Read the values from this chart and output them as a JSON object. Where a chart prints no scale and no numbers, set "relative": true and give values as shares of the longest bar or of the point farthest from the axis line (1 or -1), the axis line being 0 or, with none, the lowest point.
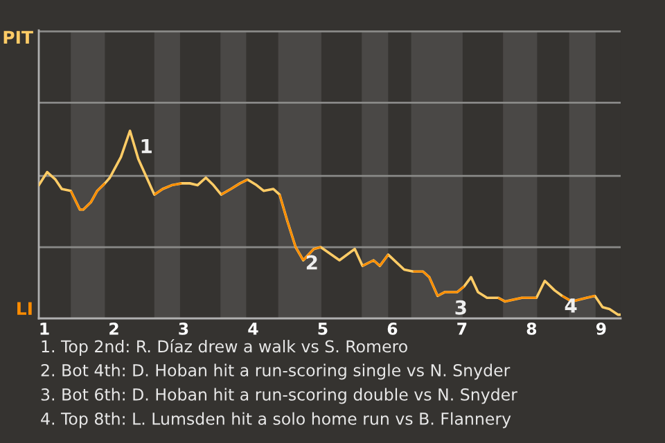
{
  "chart_data": {
    "type": "line",
    "relative": true,
    "x": [
      0.92,
      1.04,
      1.16,
      1.25,
      1.38,
      1.51,
      1.56,
      1.67,
      1.76,
      1.87,
      1.94,
      2.1,
      2.23,
      2.35,
      2.58,
      2.7,
      2.83,
      2.97,
      3.09,
      3.2,
      3.32,
      3.43,
      3.54,
      3.68,
      3.81,
      3.92,
      4.05,
      4.15,
      4.29,
      4.38,
      4.49,
      4.61,
      4.72,
      4.87,
      4.97,
      5.24,
      5.46,
      5.57,
      5.73,
      5.82,
      5.94,
      6.17,
      6.3,
      6.44,
      6.53,
      6.65,
      6.75,
      6.93,
      7.03,
      7.13,
      7.23,
      7.36,
      7.52,
      7.62,
      7.86,
      8.07,
      8.19,
      8.33,
      8.44,
      8.58,
      8.79,
      8.91,
      9.02,
      9.12,
      9.24,
      9.28
    ],
    "series": [
      {
        "color": "#ffcc66",
        "values": [
          0.71,
          0.78,
          0.74,
          0.69,
          0.68,
          0.58,
          0.58,
          0.62,
          0.68,
          0.72,
          0.75,
          0.86,
          1,
          0.85,
          0.66,
          0.69,
          0.71,
          0.72,
          0.72,
          0.71,
          0.75,
          0.71,
          0.66,
          0.69,
          0.72,
          0.74,
          0.71,
          0.68,
          0.69,
          0.66,
          0.52,
          0.38,
          0.31,
          0.37,
          0.38,
          0.31,
          0.37,
          0.28,
          0.31,
          0.28,
          0.34,
          0.26,
          0.25,
          0.25,
          0.22,
          0.12,
          0.14,
          0.14,
          0.17,
          0.22,
          0.14,
          0.11,
          0.11,
          0.09,
          0.11,
          0.11,
          0.2,
          0.15,
          0.12,
          0.09,
          0.11,
          0.12,
          0.06,
          0.05,
          0.02,
          0.02
        ],
        "colors": [
          "#ffcc66",
          "#ffcc66",
          "#ffcc66",
          "#ffcc66",
          "#ff8c00",
          "#ff8c00",
          "#ff8c00",
          "#ff8c00",
          "#ff8c00",
          "#ffcc66",
          "#ffcc66",
          "#ffcc66",
          "#ffcc66",
          "#ffcc66",
          "#ff8c00",
          "#ff8c00",
          "#ff8c00",
          "#ffcc66",
          "#ffcc66",
          "#ffcc66",
          "#ffcc66",
          "#ffcc66",
          "#ff8c00",
          "#ff8c00",
          "#ff8c00",
          "#ffcc66",
          "#ffcc66",
          "#ffcc66",
          "#ffcc66",
          "#ff8c00",
          "#ff8c00",
          "#ff8c00",
          "#ff8c00",
          "#ff8c00",
          "#ffcc66",
          "#ffcc66",
          "#ffcc66",
          "#ff8c00",
          "#ff8c00",
          "#ff8c00",
          "#ffcc66",
          "#ffcc66",
          "#ff8c00",
          "#ff8c00",
          "#ff8c00",
          "#ff8c00",
          "#ff8c00",
          "#ff8c00",
          "#ffcc66",
          "#ffcc66",
          "#ffcc66",
          "#ffcc66",
          "#ff8c00",
          "#ff8c00",
          "#ff8c00",
          "#ffcc66",
          "#ffcc66",
          "#ffcc66",
          "#ff8c00",
          "#ff8c00",
          "#ff8c00",
          "#ffcc66",
          "#ffcc66",
          "#ffcc66",
          "#ffcc66",
          "#ffcc66"
        ]
      }
    ],
    "xlim": [
      0.92,
      9.28
    ],
    "xticks": [
      1,
      2,
      3,
      4,
      5,
      6,
      7,
      8,
      9
    ],
    "ref_lines": [
      {
        "axis": "y",
        "value": 0.38,
        "color": "#8a8a88"
      },
      {
        "axis": "y",
        "value": 0.76,
        "color": "#8a8a88"
      },
      {
        "axis": "y",
        "value": 1.15,
        "color": "#8a8a88"
      },
      {
        "axis": "y",
        "value": 1.53,
        "color": "#8a8a88"
      }
    ],
    "bands": [
      {
        "axis": "x",
        "from": 1.38,
        "to": 1.87,
        "color": "#4a4846"
      },
      {
        "axis": "x",
        "from": 2.58,
        "to": 2.95,
        "color": "#4a4846"
      },
      {
        "axis": "x",
        "from": 3.53,
        "to": 3.9,
        "color": "#4a4846"
      },
      {
        "axis": "x",
        "from": 4.36,
        "to": 4.98,
        "color": "#4a4846"
      },
      {
        "axis": "x",
        "from": 5.56,
        "to": 5.94,
        "color": "#4a4846"
      },
      {
        "axis": "x",
        "from": 6.27,
        "to": 7.01,
        "color": "#4a4846"
      },
      {
        "axis": "x",
        "from": 7.59,
        "to": 8.08,
        "color": "#4a4846"
      },
      {
        "axis": "x",
        "from": 8.54,
        "to": 8.92,
        "color": "#4a4846"
      }
    ],
    "annotations": [
      "PIT",
      "LI",
      {
        "text": "1",
        "x": 2.23,
        "y": 1
      },
      {
        "text": "2",
        "x": 4.61,
        "y": 0.38
      },
      {
        "text": "3",
        "x": 6.75,
        "y": 0.14
      },
      {
        "text": "4",
        "x": 8.33,
        "y": 0.15
      },
      "1. Top 2nd: R. Díaz drew a walk vs S. Romero",
      "2. Bot 4th: D. Hoban hit a run-scoring single vs N. Snyder",
      "3. Bot 6th: D. Hoban hit a run-scoring double vs N. Snyder",
      "4. Top 8th: L. Lumsden hit a solo home run vs B. Flannery"
    ]
  }
}
